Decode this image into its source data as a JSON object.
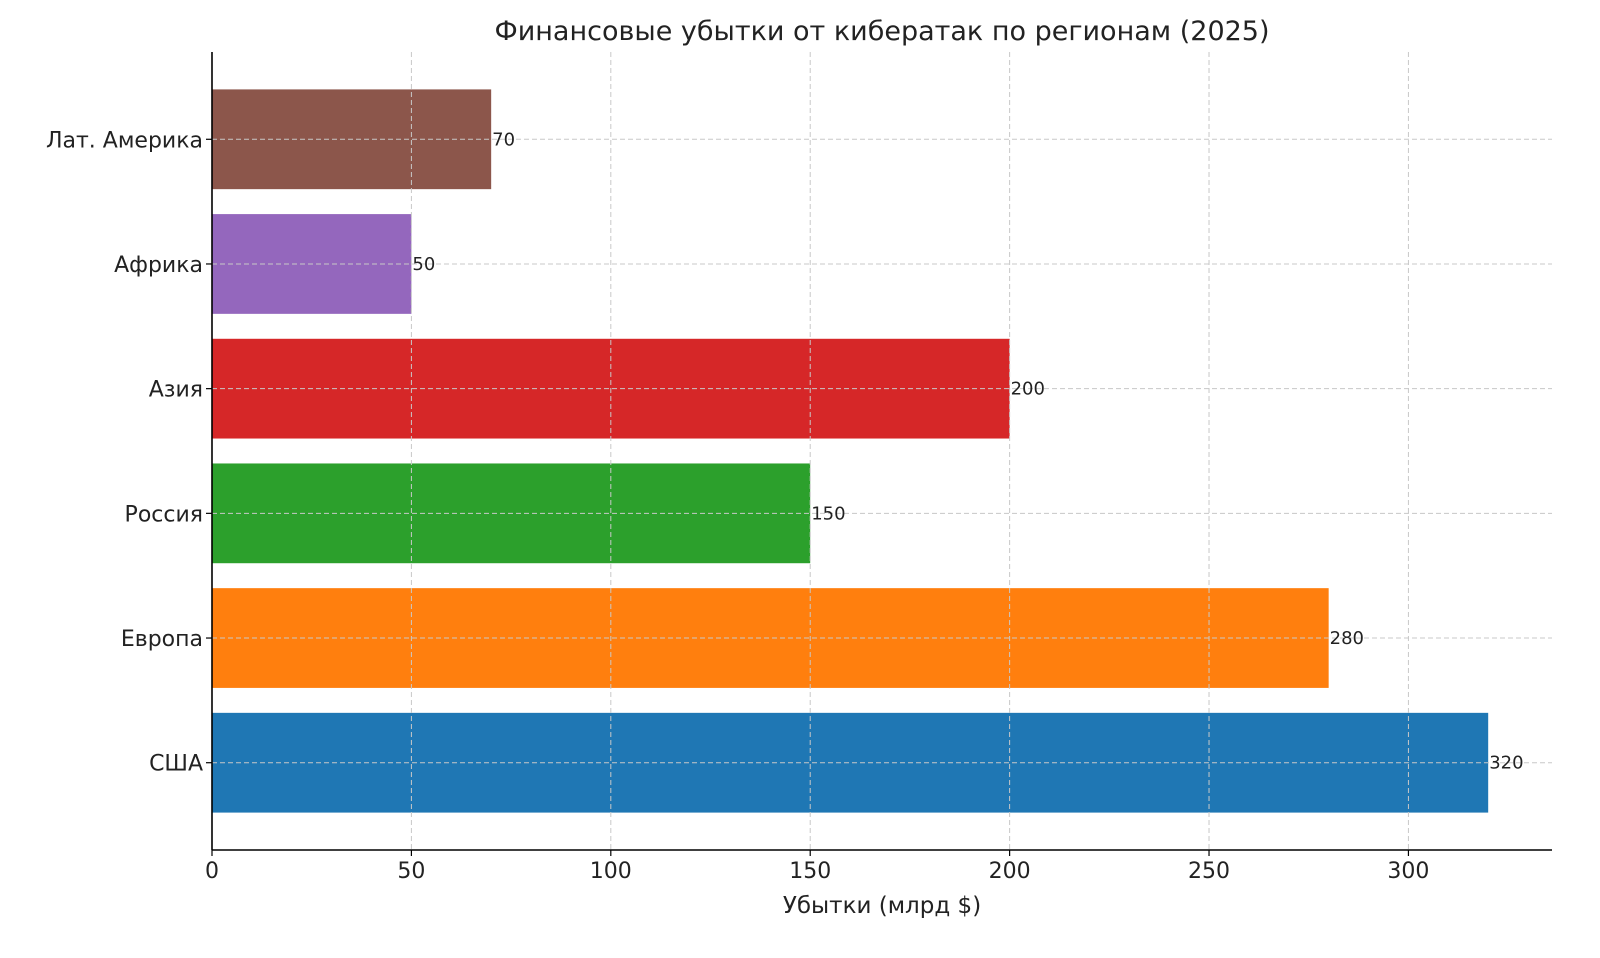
{
  "chart_data": {
    "type": "bar",
    "orientation": "horizontal",
    "title": "Финансовые убытки от кибератак по регионам (2025)",
    "xlabel": "Убытки (млрд $)",
    "ylabel": "",
    "categories": [
      "США",
      "Европа",
      "Россия",
      "Азия",
      "Африка",
      "Лат. Америка"
    ],
    "values": [
      320,
      280,
      150,
      200,
      50,
      70
    ],
    "colors": [
      "#1f77b4",
      "#ff7f0e",
      "#2ca02c",
      "#d62728",
      "#9467bd",
      "#8c564b"
    ],
    "data_labels": [
      "320",
      "280",
      "150",
      "200",
      "50",
      "70"
    ],
    "xticks": [
      0,
      50,
      100,
      150,
      200,
      250,
      300
    ],
    "xtick_labels": [
      "0",
      "50",
      "100",
      "150",
      "200",
      "250",
      "300"
    ],
    "xlim": [
      0,
      336
    ],
    "grid": true,
    "grid_style": "dashed",
    "legend": "none"
  }
}
